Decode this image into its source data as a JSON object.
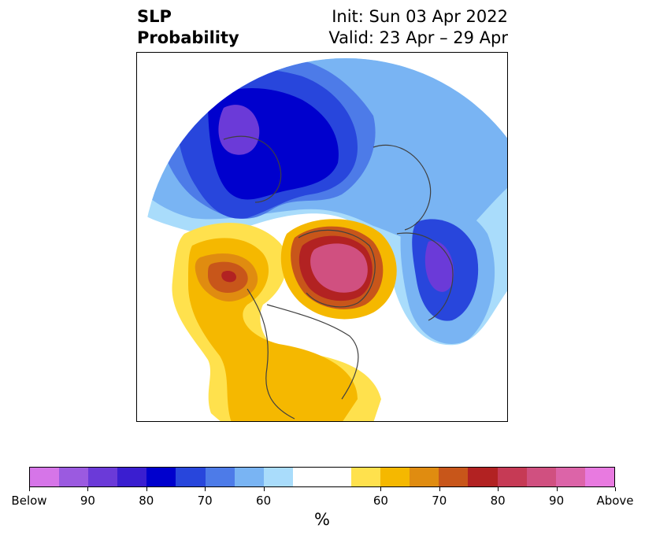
{
  "title": {
    "left_line1": "SLP",
    "left_line2": "Probability",
    "right_line1": "Init: Sun 03 Apr 2022",
    "right_line2": "Valid: 23 Apr – 29 Apr"
  },
  "colorbar": {
    "colors": [
      "#d675e8",
      "#9b5ae0",
      "#6b3ad8",
      "#3a1ed0",
      "#0000cd",
      "#2846dc",
      "#4d7be8",
      "#79b4f3",
      "#a9dcfb",
      "#ffffff",
      "#ffffff",
      "#ffe14d",
      "#f5b800",
      "#e08c10",
      "#c8561a",
      "#b22222",
      "#c63a55",
      "#d05080",
      "#dc64a8",
      "#e87ae0"
    ],
    "labels": [
      "Below",
      "90",
      "80",
      "70",
      "60",
      "60",
      "70",
      "80",
      "90",
      "Above"
    ],
    "unit": "%"
  },
  "map_regions": {
    "below_palette": [
      "#a9dcfb",
      "#79b4f3",
      "#4d7be8",
      "#2846dc",
      "#0000cd",
      "#3a1ed0",
      "#6b3ad8"
    ],
    "above_palette": [
      "#ffe14d",
      "#f5b800",
      "#e08c10",
      "#c8561a",
      "#b22222",
      "#c63a55",
      "#d05080"
    ]
  }
}
